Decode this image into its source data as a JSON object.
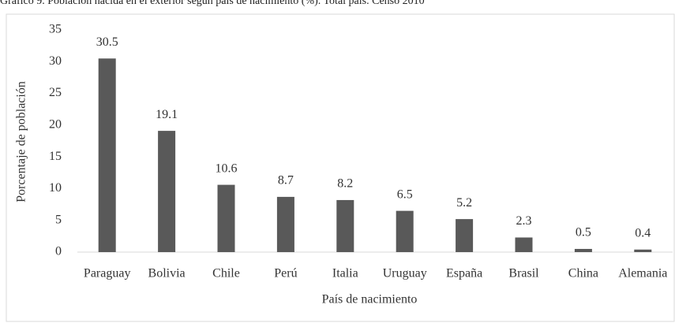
{
  "chart_data": {
    "type": "bar",
    "title": "Gráfico 9. Población nacida en el exterior según país de nacimiento (%). Total país. Censo 2010",
    "x_label": "País de nacimiento",
    "y_label": "Porcentaje de población",
    "categories": [
      "Paraguay",
      "Bolivia",
      "Chile",
      "Perú",
      "Italia",
      "Uruguay",
      "España",
      "Brasil",
      "China",
      "Alemania"
    ],
    "values": [
      30.5,
      19.1,
      10.6,
      8.7,
      8.2,
      6.5,
      5.2,
      2.3,
      0.5,
      0.4
    ],
    "color": "#595959",
    "ylim": [
      0,
      35
    ],
    "yticks": [
      0,
      5,
      10,
      15,
      20,
      25,
      30,
      35
    ],
    "grid": false
  }
}
